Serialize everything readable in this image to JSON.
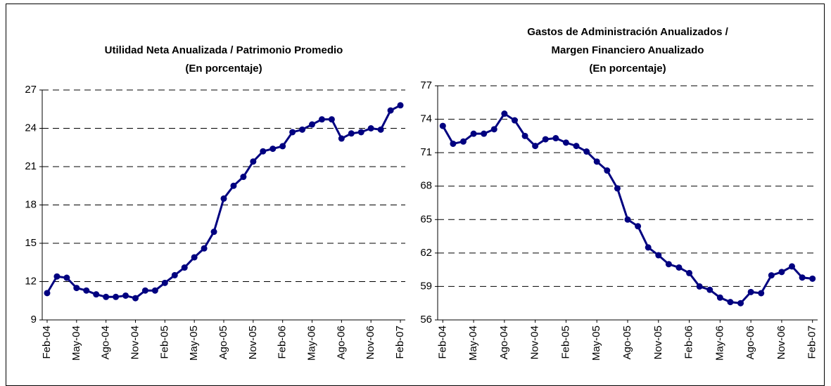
{
  "chart_data": [
    {
      "type": "line",
      "title": [
        "Utilidad Neta Anualizada / Patrimonio Promedio",
        "(En porcentaje)"
      ],
      "categories": [
        "Feb-04",
        null,
        null,
        "May-04",
        null,
        null,
        "Ago-04",
        null,
        null,
        "Nov-04",
        null,
        null,
        "Feb-05",
        null,
        null,
        "May-05",
        null,
        null,
        "Ago-05",
        null,
        null,
        "Nov-05",
        null,
        null,
        "Feb-06",
        null,
        null,
        "May-06",
        null,
        null,
        "Ago-06",
        null,
        null,
        "Nov-06",
        null,
        null,
        "Feb-07"
      ],
      "values": [
        11.1,
        12.4,
        12.3,
        11.5,
        11.3,
        11.0,
        10.8,
        10.8,
        10.9,
        10.7,
        11.3,
        11.3,
        11.9,
        12.5,
        13.1,
        13.9,
        14.6,
        15.9,
        18.5,
        19.5,
        20.2,
        21.4,
        22.2,
        22.4,
        22.6,
        23.7,
        23.9,
        24.3,
        24.7,
        24.7,
        23.2,
        23.6,
        23.7,
        24.0,
        23.9,
        25.4,
        25.8
      ],
      "color": "#000080",
      "ylim": [
        9,
        27
      ],
      "yticks": [
        9,
        12,
        15,
        18,
        21,
        24,
        27
      ],
      "grid": true
    },
    {
      "type": "line",
      "title": [
        "Gastos de Administración Anualizados /",
        "Margen Financiero Anualizado",
        "(En porcentaje)"
      ],
      "categories": [
        "Feb-04",
        null,
        null,
        "May-04",
        null,
        null,
        "Ago-04",
        null,
        null,
        "Nov-04",
        null,
        null,
        "Feb-05",
        null,
        null,
        "May-05",
        null,
        null,
        "Ago-05",
        null,
        null,
        "Nov-05",
        null,
        null,
        "Feb-06",
        null,
        null,
        "May-06",
        null,
        null,
        "Ago-06",
        null,
        null,
        "Nov-06",
        null,
        null,
        "Feb-07"
      ],
      "values": [
        73.4,
        71.8,
        72.0,
        72.7,
        72.7,
        73.1,
        74.5,
        73.9,
        72.5,
        71.6,
        72.2,
        72.3,
        71.9,
        71.6,
        71.1,
        70.2,
        69.4,
        67.8,
        65.0,
        64.4,
        62.5,
        61.8,
        61.0,
        60.7,
        60.2,
        59.0,
        58.7,
        58.0,
        57.6,
        57.5,
        58.5,
        58.4,
        60.0,
        60.3,
        60.8,
        59.8,
        59.7
      ],
      "color": "#000080",
      "ylim": [
        56,
        77
      ],
      "yticks": [
        56,
        59,
        62,
        65,
        68,
        71,
        74,
        77
      ],
      "grid": true
    }
  ]
}
